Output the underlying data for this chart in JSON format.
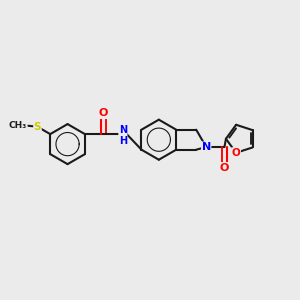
{
  "background_color": "#ebebeb",
  "bond_color": "#1a1a1a",
  "bond_width": 1.5,
  "atom_colors": {
    "O": "#ff0000",
    "N": "#0000ff",
    "S": "#cccc00",
    "C": "#1a1a1a"
  },
  "figsize": [
    3.0,
    3.0
  ],
  "dpi": 100,
  "xlim": [
    0,
    10
  ],
  "ylim": [
    0,
    10
  ]
}
